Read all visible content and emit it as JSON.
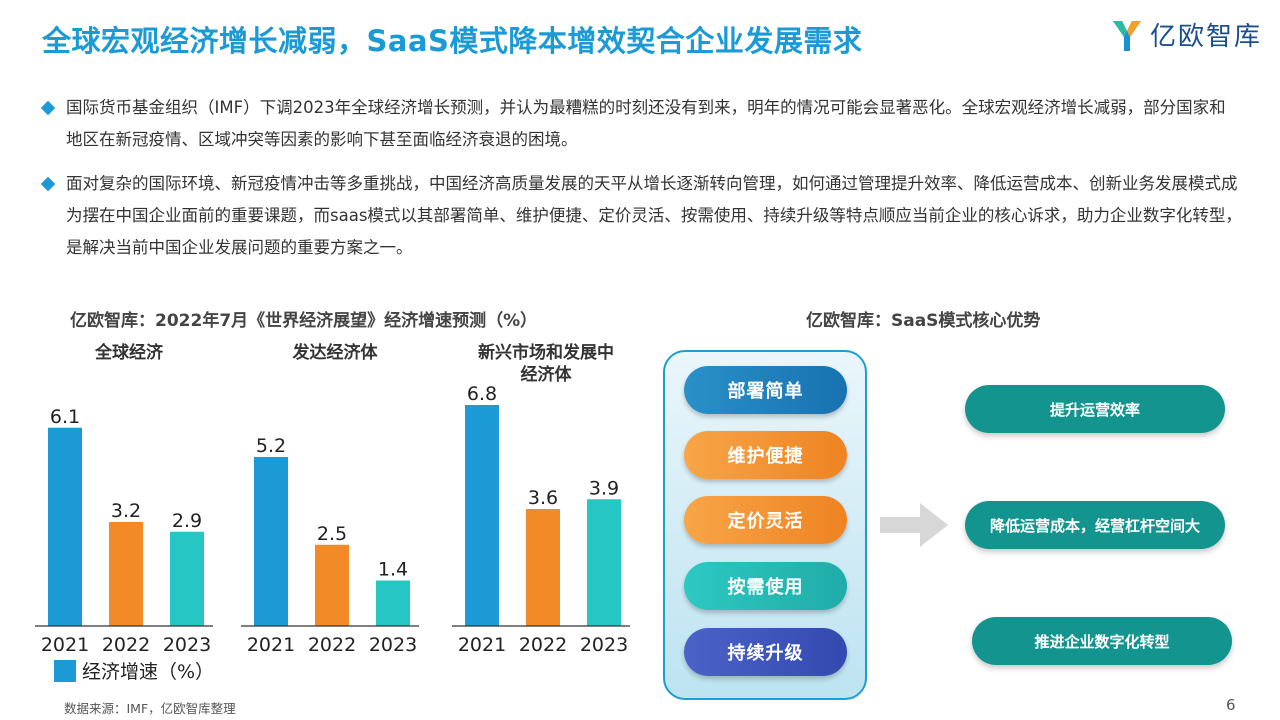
{
  "title": "全球宏观经济增长减弱，SaaS模式降本增效契合企业发展需求",
  "logo": {
    "text": "亿欧智库"
  },
  "bullets": [
    "国际货币基金组织（IMF）下调2023年全球经济增长预测，并认为最糟糕的时刻还没有到来，明年的情况可能会显著恶化。全球宏观经济增长减弱，部分国家和地区在新冠疫情、区域冲突等因素的影响下甚至面临经济衰退的困境。",
    "面对复杂的国际环境、新冠疫情冲击等多重挑战，中国经济高质量发展的天平从增长逐渐转向管理，如何通过管理提升效率、降低运营成本、创新业务发展模式成为摆在中国企业面前的重要课题，而saas模式以其部署简单、维护便捷、定价灵活、按需使用、持续升级等特点顺应当前企业的核心诉求，助力企业数字化转型，是解决当前中国企业发展问题的重要方案之一。"
  ],
  "chart_data": [
    {
      "type": "bar",
      "title": "亿欧智库：2022年7月《世界经济展望》经济增速预测（%）",
      "subtitle": "全球经济",
      "categories": [
        "2021",
        "2022",
        "2023"
      ],
      "series": [
        {
          "name": "经济增速（%）",
          "values": [
            6.1,
            3.2,
            2.9
          ]
        }
      ],
      "bar_colors": [
        "#1b9ad6",
        "#f28a28",
        "#26c6c4"
      ],
      "legend": "bottom-left",
      "ylim": [
        0,
        7
      ]
    },
    {
      "type": "bar",
      "subtitle": "发达经济体",
      "categories": [
        "2021",
        "2022",
        "2023"
      ],
      "series": [
        {
          "name": "经济增速（%）",
          "values": [
            5.2,
            2.5,
            1.4
          ]
        }
      ],
      "bar_colors": [
        "#1b9ad6",
        "#f28a28",
        "#26c6c4"
      ],
      "ylim": [
        0,
        7
      ]
    },
    {
      "type": "bar",
      "subtitle": "新兴市场和发展中经济体",
      "subtitle_lines": [
        "新兴市场和发展中",
        "经济体"
      ],
      "categories": [
        "2021",
        "2022",
        "2023"
      ],
      "series": [
        {
          "name": "经济增速（%）",
          "values": [
            6.8,
            3.6,
            3.9
          ]
        }
      ],
      "bar_colors": [
        "#1b9ad6",
        "#f28a28",
        "#26c6c4"
      ],
      "ylim": [
        0,
        7
      ]
    }
  ],
  "legend_label": "经济增速（%）",
  "advantages": {
    "title": "亿欧智库：SaaS模式核心优势",
    "items": [
      "部署简单",
      "维护便捷",
      "定价灵活",
      "按需使用",
      "持续升级"
    ],
    "results": [
      "提升运营效率",
      "降低运营成本，经营杠杆空间大",
      "推进企业数字化转型"
    ]
  },
  "source": "数据来源：IMF，亿欧智库整理",
  "page_number": "6",
  "colors": {
    "accent": "#1b9ad6",
    "orange": "#f28a28",
    "teal": "#26c6c4",
    "result": "#14948f"
  }
}
